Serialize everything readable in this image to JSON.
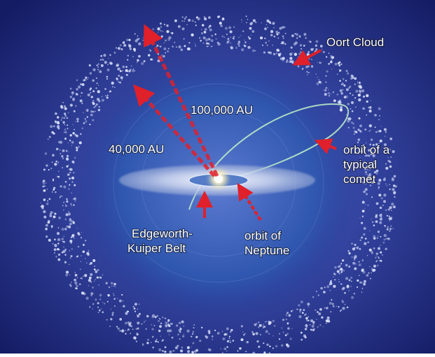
{
  "diagram": {
    "labels": {
      "oort_cloud": "Oort Cloud",
      "dist_100000": "100,000 AU",
      "dist_40000": "40,000 AU",
      "typical_comet_line1": "orbit of a",
      "typical_comet_line2": "typical",
      "typical_comet_line3": "comet",
      "kuiper_line1": "Edgeworth-",
      "kuiper_line2": "Kuiper Belt",
      "neptune_line1": "orbit of",
      "neptune_line2": "Neptune"
    },
    "colors": {
      "background_dark": "#141c64",
      "background_mid": "#3a4aa8",
      "cloud": "#dfe6ff",
      "arrow": "#e0202a",
      "comet_orbit": "#b9e8c8",
      "sun": "#fffbe0"
    }
  }
}
